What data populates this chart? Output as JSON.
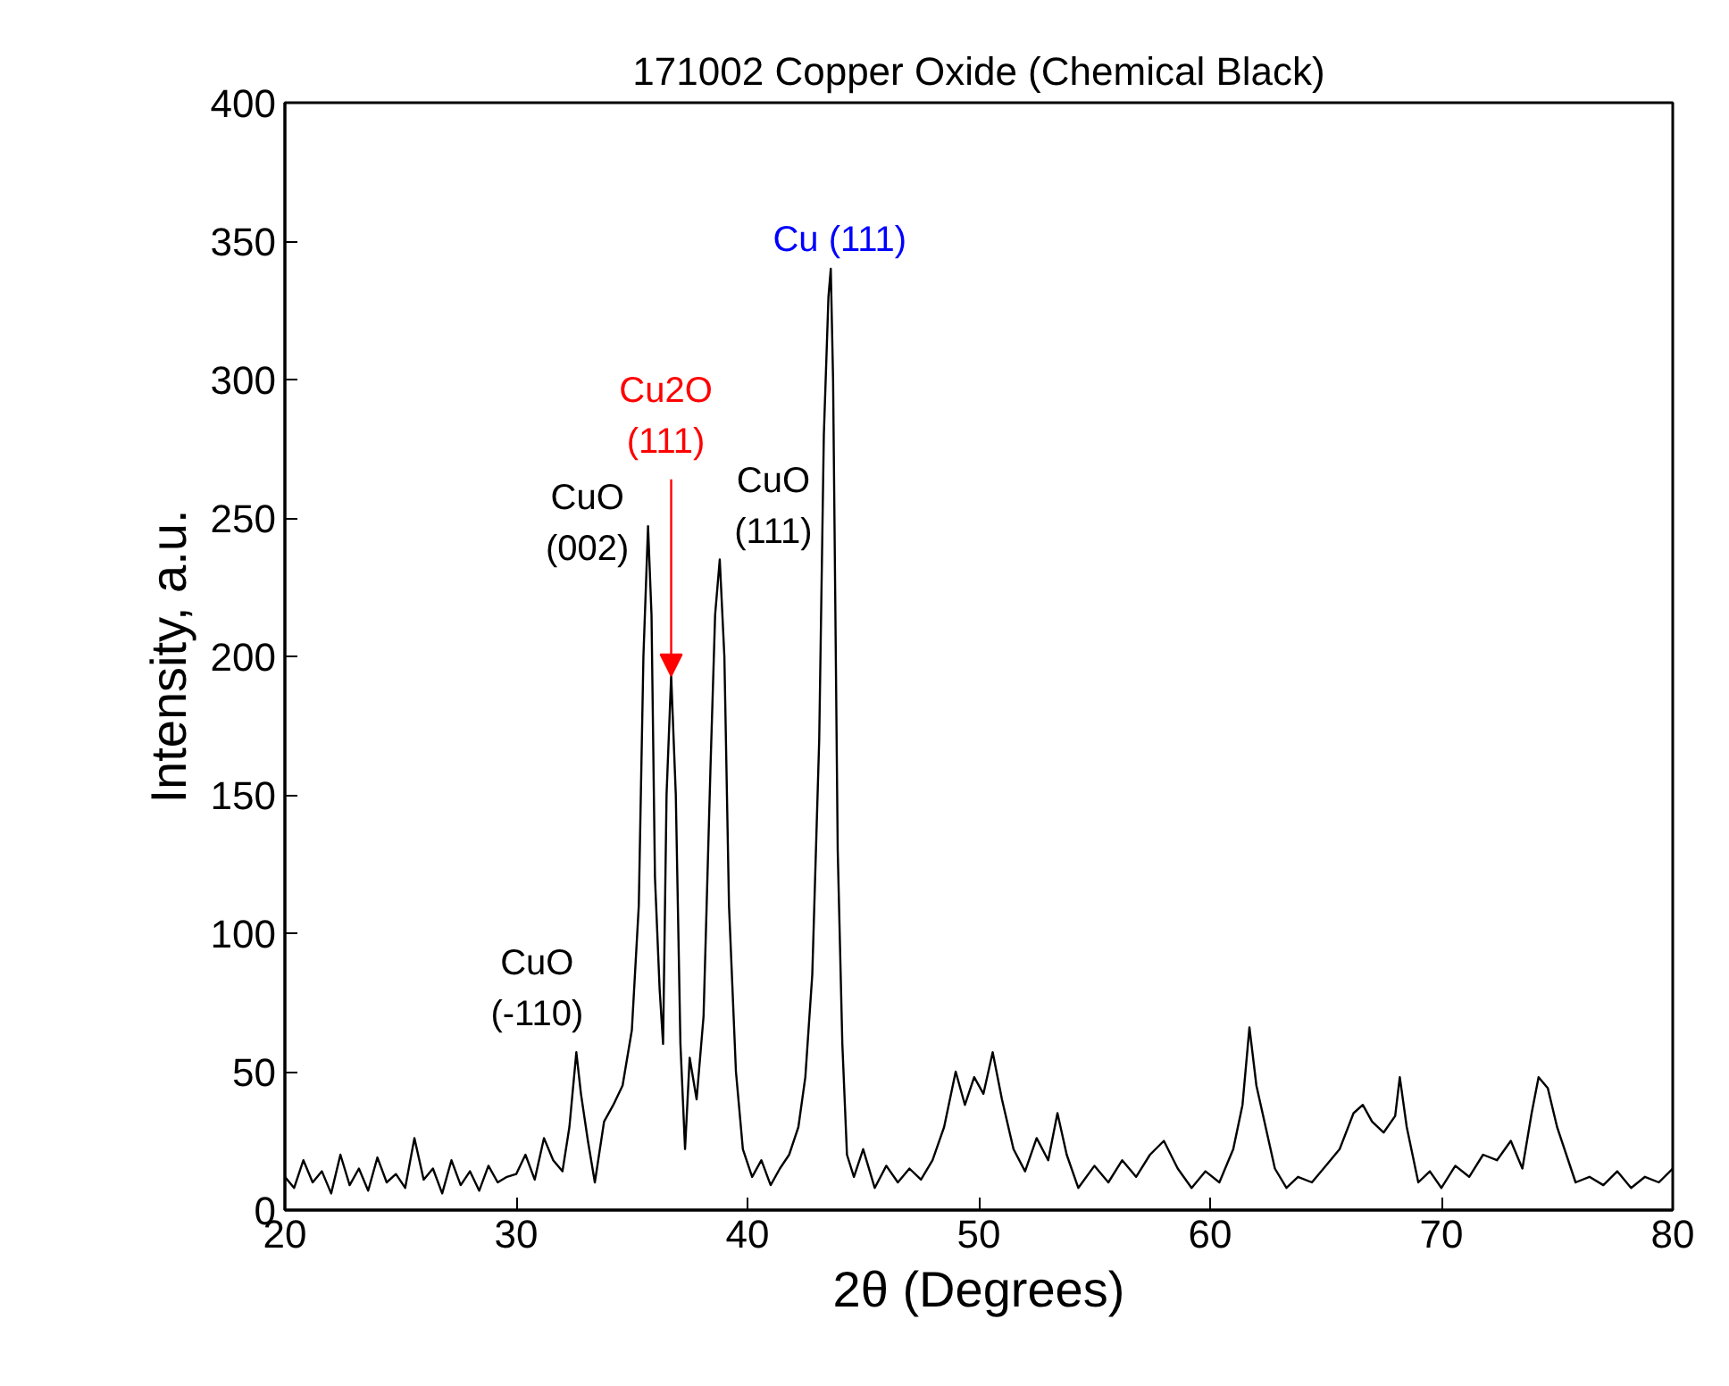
{
  "chart_data": {
    "type": "line",
    "title": "171002 Copper Oxide (Chemical Black)",
    "xlabel": "2θ (Degrees)",
    "ylabel": "Intensity, a.u.",
    "xlim": [
      20,
      80
    ],
    "ylim": [
      0,
      400
    ],
    "xticks": [
      20,
      30,
      40,
      50,
      60,
      70,
      80
    ],
    "yticks": [
      0,
      50,
      100,
      150,
      200,
      250,
      300,
      350,
      400
    ],
    "grid": false,
    "marker": "none",
    "line_style": "solid",
    "x": [
      20,
      20.4,
      20.8,
      21.2,
      21.6,
      22,
      22.4,
      22.8,
      23.2,
      23.6,
      24,
      24.4,
      24.8,
      25.2,
      25.6,
      26,
      26.4,
      26.8,
      27.2,
      27.6,
      28,
      28.4,
      28.8,
      29.2,
      29.6,
      30,
      30.4,
      30.8,
      31.2,
      31.6,
      32,
      32.3,
      32.6,
      32.8,
      33.1,
      33.4,
      33.8,
      34.2,
      34.6,
      35,
      35.3,
      35.5,
      35.7,
      35.85,
      36,
      36.2,
      36.35,
      36.5,
      36.7,
      36.9,
      37.1,
      37.3,
      37.5,
      37.8,
      38.1,
      38.4,
      38.6,
      38.8,
      39,
      39.2,
      39.5,
      39.8,
      40.2,
      40.6,
      41,
      41.4,
      41.8,
      42.2,
      42.5,
      42.8,
      43.1,
      43.3,
      43.5,
      43.6,
      43.7,
      43.9,
      44.1,
      44.3,
      44.6,
      45,
      45.5,
      46,
      46.5,
      47,
      47.5,
      48,
      48.5,
      49,
      49.4,
      49.8,
      50.2,
      50.6,
      51,
      51.5,
      52,
      52.5,
      53,
      53.4,
      53.8,
      54.3,
      55,
      55.6,
      56.2,
      56.8,
      57.4,
      58,
      58.6,
      59.2,
      59.8,
      60.4,
      61,
      61.4,
      61.7,
      62,
      62.4,
      62.8,
      63.3,
      63.8,
      64.4,
      65,
      65.6,
      66.2,
      66.6,
      67,
      67.5,
      68,
      68.2,
      68.5,
      69,
      69.5,
      70,
      70.6,
      71.2,
      71.8,
      72.4,
      73,
      73.5,
      73.9,
      74.2,
      74.6,
      75,
      75.4,
      75.8,
      76.4,
      77,
      77.6,
      78.2,
      78.8,
      79.4,
      80
    ],
    "series": [
      {
        "color": "#000000",
        "values": [
          12,
          8,
          18,
          10,
          14,
          6,
          20,
          9,
          15,
          7,
          19,
          10,
          13,
          8,
          26,
          11,
          15,
          6,
          18,
          9,
          14,
          7,
          16,
          10,
          12,
          13,
          20,
          11,
          26,
          18,
          14,
          30,
          57,
          42,
          25,
          10,
          32,
          38,
          45,
          65,
          110,
          200,
          247,
          215,
          120,
          80,
          60,
          150,
          193,
          150,
          60,
          22,
          55,
          40,
          70,
          160,
          215,
          235,
          200,
          110,
          50,
          22,
          12,
          18,
          9,
          15,
          20,
          30,
          48,
          85,
          170,
          280,
          330,
          340,
          300,
          130,
          60,
          20,
          12,
          22,
          8,
          16,
          10,
          15,
          11,
          18,
          30,
          50,
          38,
          48,
          42,
          57,
          40,
          22,
          14,
          26,
          18,
          35,
          20,
          8,
          16,
          10,
          18,
          12,
          20,
          25,
          15,
          8,
          14,
          10,
          22,
          38,
          66,
          45,
          30,
          15,
          8,
          12,
          10,
          16,
          22,
          35,
          38,
          32,
          28,
          34,
          48,
          30,
          10,
          14,
          8,
          16,
          12,
          20,
          18,
          25,
          15,
          35,
          48,
          44,
          30,
          20,
          10,
          12,
          9,
          14,
          8,
          12,
          10,
          15
        ]
      }
    ],
    "annotations": [
      {
        "text": "CuO\n(-110)",
        "x": 32.6,
        "y": 57
      },
      {
        "text": "CuO\n(002)",
        "x": 35.7,
        "y": 247
      },
      {
        "text": "Cu2O\n(111)",
        "x": 36.7,
        "y": 193
      },
      {
        "text": "CuO\n(111)",
        "x": 38.8,
        "y": 235
      },
      {
        "text": "Cu (111)",
        "x": 43.6,
        "y": 340
      }
    ]
  }
}
